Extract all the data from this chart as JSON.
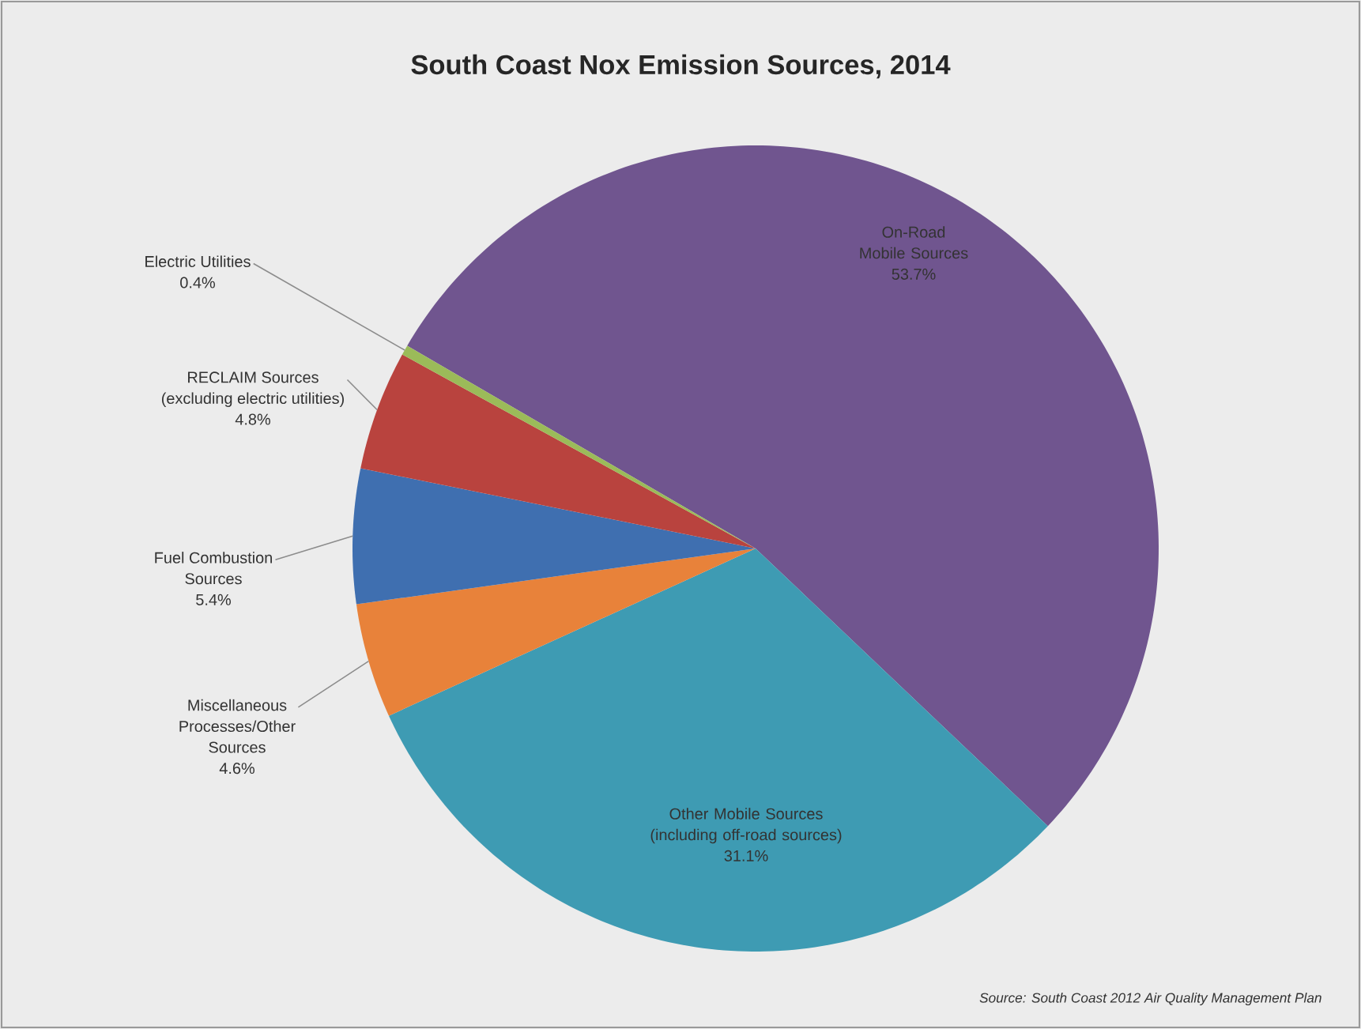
{
  "chart_data": {
    "type": "pie",
    "title": "South Coast Nox Emission Sources, 2014",
    "categories": [
      "On-Road Mobile Sources",
      "Other Mobile Sources (including off-road sources)",
      "Miscellaneous Processes/Other Sources",
      "Fuel Combustion Sources",
      "RECLAIM Sources (excluding electric utilities)",
      "Electric Utilities"
    ],
    "values": [
      53.7,
      31.1,
      4.6,
      5.4,
      4.8,
      0.4
    ],
    "colors": [
      "#70558f",
      "#3e9bb3",
      "#e8823a",
      "#3f6fb0",
      "#b9433e",
      "#9bbb59"
    ],
    "value_labels": [
      "53.7%",
      "31.1%",
      "4.6%",
      "5.4%",
      "4.8%",
      "0.4%"
    ],
    "annotations": [
      "Source: South Coast 2012 Air Quality Management Plan"
    ]
  }
}
